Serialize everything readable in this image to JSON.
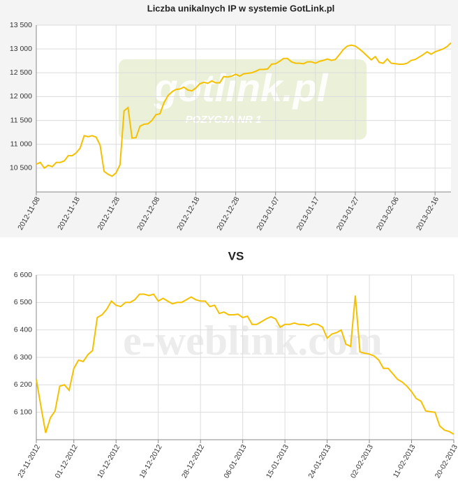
{
  "chart_data": [
    {
      "type": "line",
      "title": "Liczba unikalnych IP w systemie GotLink.pl",
      "watermark": "gotlink.pl",
      "watermark_subtitle": "POZYCJA NR 1",
      "x": [
        "2012-11-08",
        "2012-11-09",
        "2012-11-10",
        "2012-11-11",
        "2012-11-12",
        "2012-11-13",
        "2012-11-14",
        "2012-11-15",
        "2012-11-16",
        "2012-11-17",
        "2012-11-18",
        "2012-11-19",
        "2012-11-20",
        "2012-11-21",
        "2012-11-22",
        "2012-11-23",
        "2012-11-24",
        "2012-11-25",
        "2012-11-26",
        "2012-11-27",
        "2012-11-28",
        "2012-11-29",
        "2012-11-30",
        "2012-12-01",
        "2012-12-02",
        "2012-12-03",
        "2012-12-04",
        "2012-12-05",
        "2012-12-06",
        "2012-12-07",
        "2012-12-08",
        "2012-12-09",
        "2012-12-10",
        "2012-12-11",
        "2012-12-12",
        "2012-12-13",
        "2012-12-14",
        "2012-12-15",
        "2012-12-16",
        "2012-12-17",
        "2012-12-18",
        "2012-12-19",
        "2012-12-20",
        "2012-12-21",
        "2012-12-22",
        "2012-12-23",
        "2012-12-24",
        "2012-12-25",
        "2012-12-26",
        "2012-12-27",
        "2012-12-28",
        "2012-12-29",
        "2012-12-30",
        "2012-12-31",
        "2013-01-01",
        "2013-01-02",
        "2013-01-03",
        "2013-01-04",
        "2013-01-05",
        "2013-01-06",
        "2013-01-07",
        "2013-01-08",
        "2013-01-09",
        "2013-01-10",
        "2013-01-11",
        "2013-01-12",
        "2013-01-13",
        "2013-01-14",
        "2013-01-15",
        "2013-01-16",
        "2013-01-17",
        "2013-01-18",
        "2013-01-19",
        "2013-01-20",
        "2013-01-21",
        "2013-01-22",
        "2013-01-23",
        "2013-01-24",
        "2013-01-25",
        "2013-01-26",
        "2013-01-27",
        "2013-01-28",
        "2013-01-29",
        "2013-01-30",
        "2013-01-31",
        "2013-02-01",
        "2013-02-02",
        "2013-02-03",
        "2013-02-04",
        "2013-02-05",
        "2013-02-06",
        "2013-02-07",
        "2013-02-08",
        "2013-02-09",
        "2013-02-10",
        "2013-02-11",
        "2013-02-12",
        "2013-02-13",
        "2013-02-14",
        "2013-02-15",
        "2013-02-16",
        "2013-02-17",
        "2013-02-18",
        "2013-02-19",
        "2013-02-20"
      ],
      "values": [
        10580,
        10620,
        10500,
        10560,
        10530,
        10620,
        10620,
        10650,
        10760,
        10760,
        10820,
        10920,
        11180,
        11160,
        11180,
        11150,
        10980,
        10430,
        10370,
        10330,
        10400,
        10570,
        11700,
        11770,
        11130,
        11140,
        11380,
        11420,
        11430,
        11500,
        11620,
        11640,
        11870,
        12020,
        12100,
        12150,
        12160,
        12200,
        12140,
        12120,
        12180,
        12270,
        12300,
        12280,
        12330,
        12290,
        12290,
        12420,
        12410,
        12430,
        12470,
        12430,
        12480,
        12490,
        12500,
        12530,
        12570,
        12570,
        12580,
        12680,
        12690,
        12740,
        12800,
        12800,
        12730,
        12700,
        12700,
        12690,
        12730,
        12730,
        12700,
        12740,
        12760,
        12790,
        12760,
        12780,
        12880,
        12990,
        13060,
        13080,
        13060,
        13000,
        12930,
        12850,
        12770,
        12840,
        12720,
        12700,
        12790,
        12700,
        12690,
        12680,
        12680,
        12700,
        12760,
        12780,
        12830,
        12880,
        12940,
        12890,
        12940,
        12970,
        13000,
        13050,
        13130
      ],
      "color": "#f5c000",
      "xlim": [
        "2012-11-08",
        "2013-02-20"
      ],
      "xticks": [
        "2012-11-08",
        "2012-11-18",
        "2012-11-28",
        "2012-12-08",
        "2012-12-18",
        "2012-12-28",
        "2013-01-07",
        "2013-01-17",
        "2013-01-27",
        "2013-02-06",
        "2013-02-16"
      ],
      "ylim": [
        10000,
        13500
      ],
      "yticks": [
        {
          "value": 10500,
          "label": "10 500"
        },
        {
          "value": 11000,
          "label": "11 000"
        },
        {
          "value": 11500,
          "label": "11 500"
        },
        {
          "value": 12000,
          "label": "12 000"
        },
        {
          "value": 12500,
          "label": "12 500"
        },
        {
          "value": 13000,
          "label": "13 000"
        },
        {
          "value": 13500,
          "label": "13 500"
        }
      ],
      "grid": true
    },
    {
      "type": "line",
      "title": "VS",
      "watermark": "e-weblink.com",
      "x": [
        "23-11-2012",
        "24-11-2012",
        "25-11-2012",
        "26-11-2012",
        "27-11-2012",
        "28-11-2012",
        "29-11-2012",
        "30-11-2012",
        "01-12-2012",
        "02-12-2012",
        "03-12-2012",
        "04-12-2012",
        "05-12-2012",
        "06-12-2012",
        "07-12-2012",
        "08-12-2012",
        "09-12-2012",
        "10-12-2012",
        "11-12-2012",
        "12-12-2012",
        "13-12-2012",
        "14-12-2012",
        "15-12-2012",
        "16-12-2012",
        "17-12-2012",
        "18-12-2012",
        "19-12-2012",
        "20-12-2012",
        "21-12-2012",
        "22-12-2012",
        "23-12-2012",
        "24-12-2012",
        "25-12-2012",
        "26-12-2012",
        "27-12-2012",
        "28-12-2012",
        "29-12-2012",
        "30-12-2012",
        "31-12-2012",
        "01-01-2013",
        "02-01-2013",
        "03-01-2013",
        "04-01-2013",
        "05-01-2013",
        "06-01-2013",
        "07-01-2013",
        "08-01-2013",
        "09-01-2013",
        "10-01-2013",
        "11-01-2013",
        "12-01-2013",
        "13-01-2013",
        "14-01-2013",
        "15-01-2013",
        "16-01-2013",
        "17-01-2013",
        "18-01-2013",
        "19-01-2013",
        "20-01-2013",
        "21-01-2013",
        "22-01-2013",
        "23-01-2013",
        "24-01-2013",
        "25-01-2013",
        "26-01-2013",
        "27-01-2013",
        "28-01-2013",
        "29-01-2013",
        "30-01-2013",
        "31-01-2013",
        "01-02-2013",
        "02-02-2013",
        "03-02-2013",
        "04-02-2013",
        "05-02-2013",
        "06-02-2013",
        "07-02-2013",
        "08-02-2013",
        "09-02-2013",
        "10-02-2013",
        "11-02-2013",
        "12-02-2013",
        "13-02-2013",
        "14-02-2013",
        "15-02-2013",
        "16-02-2013",
        "17-02-2013",
        "18-02-2013",
        "19-02-2013",
        "20-02-2013"
      ],
      "values": [
        6220,
        6120,
        6025,
        6080,
        6105,
        6195,
        6200,
        6180,
        6260,
        6290,
        6285,
        6310,
        6325,
        6445,
        6455,
        6475,
        6505,
        6490,
        6485,
        6500,
        6500,
        6510,
        6530,
        6530,
        6525,
        6530,
        6505,
        6515,
        6505,
        6495,
        6500,
        6500,
        6510,
        6520,
        6510,
        6505,
        6505,
        6485,
        6490,
        6460,
        6465,
        6455,
        6455,
        6457,
        6445,
        6450,
        6420,
        6420,
        6430,
        6440,
        6448,
        6440,
        6410,
        6420,
        6420,
        6425,
        6420,
        6420,
        6415,
        6422,
        6420,
        6410,
        6370,
        6385,
        6390,
        6400,
        6348,
        6340,
        6525,
        6320,
        6315,
        6312,
        6305,
        6290,
        6260,
        6260,
        6240,
        6220,
        6210,
        6195,
        6175,
        6150,
        6140,
        6105,
        6102,
        6100,
        6050,
        6035,
        6030,
        6020
      ],
      "color": "#f5c000",
      "xlim": [
        "23-11-2012",
        "20-02-2013"
      ],
      "xticks": [
        "23-11-2012",
        "01-12-2012",
        "10-12-2012",
        "19-12-2012",
        "28-12-2012",
        "06-01-2013",
        "15-01-2013",
        "24-01-2013",
        "02-02-2013",
        "11-02-2013",
        "20-02-2013"
      ],
      "ylim": [
        6000,
        6600
      ],
      "yticks": [
        {
          "value": 6100,
          "label": "6 100"
        },
        {
          "value": 6200,
          "label": "6 200"
        },
        {
          "value": 6300,
          "label": "6 300"
        },
        {
          "value": 6400,
          "label": "6 400"
        },
        {
          "value": 6500,
          "label": "6 500"
        },
        {
          "value": 6600,
          "label": "6 600"
        }
      ],
      "grid": true
    }
  ]
}
